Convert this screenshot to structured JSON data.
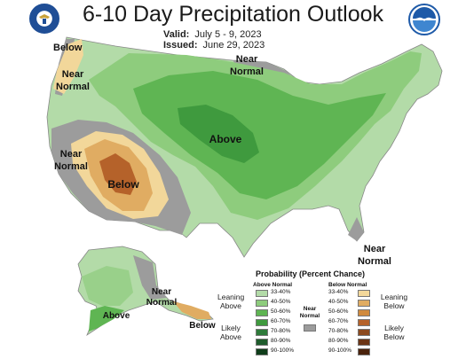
{
  "header": {
    "title": "6-10 Day Precipitation Outlook",
    "valid_label": "Valid:",
    "valid_value": "July 5 - 9, 2023",
    "issued_label": "Issued:",
    "issued_value": "June 29, 2023"
  },
  "map_labels": {
    "below_nw": "Below",
    "near_normal_nw": "Near Normal",
    "near_normal_north": "Near Normal",
    "near_normal_west": "Near Normal",
    "above_central": "Above",
    "below_sw": "Below",
    "near_normal_se": "Near Normal",
    "near_normal_alaska": "Near Normal",
    "above_alaska": "Above",
    "below_alaska": "Below"
  },
  "legend": {
    "title": "Probability (Percent Chance)",
    "above_header": "Above Normal",
    "near_header": "Near Normal",
    "below_header": "Below Normal",
    "leaning_above": "Leaning Above",
    "likely_above": "Likely Above",
    "leaning_below": "Leaning Below",
    "likely_below": "Likely Below",
    "ranges": [
      "33-40%",
      "40-50%",
      "50-60%",
      "60-70%",
      "70-80%",
      "80-90%",
      "90-100%"
    ],
    "above_colors": [
      "#b3dba8",
      "#8ecc7d",
      "#5fb553",
      "#3f9a3e",
      "#2e7a3a",
      "#1f5c2c",
      "#0f3d1a"
    ],
    "below_colors": [
      "#f2d79a",
      "#e0ac62",
      "#d08a3e",
      "#b5622a",
      "#8c4a1f",
      "#6b3516",
      "#4a230c"
    ],
    "near_color": "#9c9c9c"
  }
}
